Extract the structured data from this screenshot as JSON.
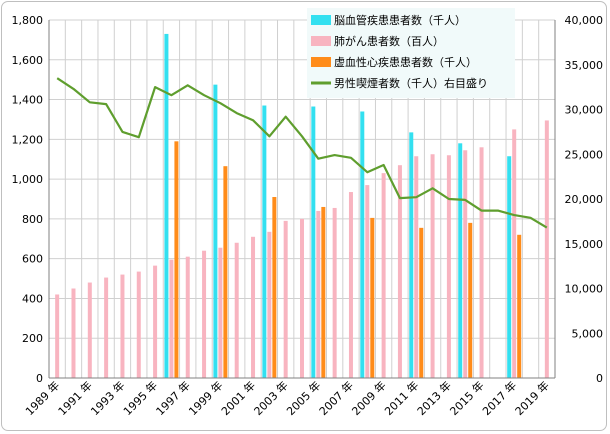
{
  "chart_data": {
    "type": "bar",
    "title": "",
    "xlabel": "",
    "ylabel": "",
    "y2label": "",
    "ylim": [
      0,
      1800
    ],
    "y2lim": [
      0,
      40000
    ],
    "grid": true,
    "legend_position": "top-center",
    "categories": [
      "1989",
      "1990",
      "1991",
      "1992",
      "1993",
      "1994",
      "1995",
      "1996",
      "1997",
      "1998",
      "1999",
      "2000",
      "2001",
      "2002",
      "2003",
      "2004",
      "2005",
      "2006",
      "2007",
      "2008",
      "2009",
      "2010",
      "2011",
      "2012",
      "2013",
      "2014",
      "2015",
      "2016",
      "2017",
      "2018",
      "2019"
    ],
    "x_tick_labels": [
      "1989 年",
      "1991 年",
      "1993 年",
      "1995 年",
      "1997 年",
      "1999 年",
      "2001 年",
      "2003 年",
      "2005 年",
      "2007 年",
      "2009 年",
      "2011 年",
      "2013 年",
      "2015 年",
      "2017 年",
      "2019 年"
    ],
    "y_ticks": [
      "0",
      "200",
      "400",
      "600",
      "800",
      "1,000",
      "1,200",
      "1,400",
      "1,600",
      "1,800"
    ],
    "y2_ticks": [
      "0",
      "5,000",
      "10,000",
      "15,000",
      "20,000",
      "25,000",
      "30,000",
      "35,000",
      "40,000"
    ],
    "series": [
      {
        "name": "脳血管疾患患者数（千人）",
        "color": "#33e0f0",
        "axis": "left",
        "values": [
          null,
          null,
          null,
          null,
          null,
          null,
          null,
          1730,
          null,
          null,
          1475,
          null,
          null,
          1370,
          null,
          null,
          1365,
          null,
          null,
          1340,
          null,
          null,
          1235,
          null,
          null,
          1180,
          null,
          null,
          1115,
          null,
          null
        ]
      },
      {
        "name": "肺がん患者数（百人）",
        "color": "#f8b4c0",
        "axis": "left",
        "values": [
          420,
          450,
          480,
          505,
          520,
          535,
          565,
          595,
          610,
          640,
          655,
          680,
          710,
          735,
          790,
          800,
          840,
          855,
          935,
          970,
          1030,
          1070,
          1115,
          1125,
          1120,
          1145,
          1160,
          null,
          1250,
          null,
          1295
        ]
      },
      {
        "name": "虚血性心疾患患者数（千人）",
        "color": "#ff8c1a",
        "axis": "left",
        "values": [
          null,
          null,
          null,
          null,
          null,
          null,
          null,
          1190,
          null,
          null,
          1065,
          null,
          null,
          910,
          null,
          null,
          860,
          null,
          null,
          805,
          null,
          null,
          755,
          null,
          null,
          780,
          null,
          null,
          720,
          null,
          null
        ]
      },
      {
        "name": "男性喫煙者数（千人）右目盛り",
        "color": "#5f9e2e",
        "axis": "right",
        "type": "line",
        "values": [
          33500,
          32300,
          30800,
          30600,
          27500,
          26900,
          32500,
          31600,
          32700,
          31600,
          30700,
          29600,
          28800,
          27000,
          29200,
          27000,
          24500,
          24900,
          24600,
          23000,
          23800,
          20100,
          20200,
          21200,
          20000,
          19900,
          18700,
          18700,
          18200,
          17900,
          16800
        ]
      }
    ]
  }
}
